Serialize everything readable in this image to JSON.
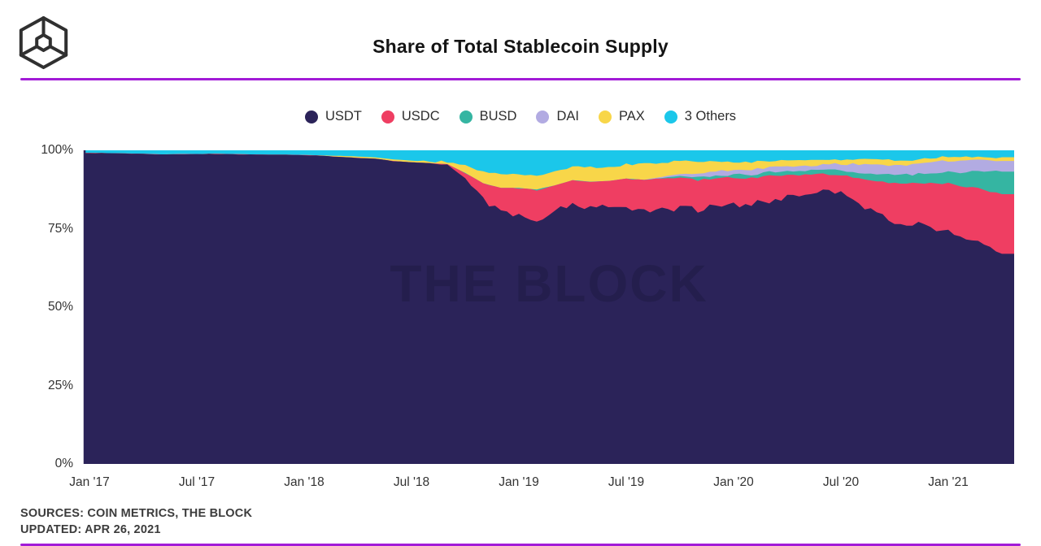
{
  "header": {
    "title": "Share of Total Stablecoin Supply",
    "accent_color": "#A21BD7",
    "logo": "the-block-cube-logo"
  },
  "chart_data": {
    "type": "area",
    "stacked": true,
    "units": "percent",
    "title": "Share of Total Stablecoin Supply",
    "watermark": "THE BLOCK",
    "legend_position": "top",
    "grid": false,
    "ylim": [
      0,
      100
    ],
    "y_tick_labels": [
      "0%",
      "25%",
      "50%",
      "75%",
      "100%"
    ],
    "x_tick_labels": [
      "Jan '17",
      "Jul '17",
      "Jan '18",
      "Jul '18",
      "Jan '19",
      "Jul '19",
      "Jan '20",
      "Jul '20",
      "Jan '21"
    ],
    "x_start": "2017-01",
    "x_end": "2021-04",
    "x_frequency": "monthly",
    "series": [
      {
        "name": "USDT",
        "color": "#2B2359",
        "values": [
          99.2,
          99.1,
          99.0,
          98.9,
          98.7,
          98.8,
          98.8,
          98.9,
          98.8,
          98.7,
          98.6,
          98.6,
          98.5,
          98.3,
          97.9,
          97.6,
          97.3,
          96.6,
          96.2,
          95.9,
          95.4,
          91.0,
          84.0,
          80.5,
          79.0,
          78.0,
          81.0,
          82.5,
          81.5,
          82.0,
          81.5,
          80.5,
          81.0,
          81.5,
          81.0,
          82.0,
          82.5,
          83.0,
          84.0,
          85.0,
          86.0,
          86.5,
          86.0,
          83.0,
          80.0,
          77.5,
          76.5,
          75.5,
          74.5,
          72.0,
          69.5,
          67.0
        ]
      },
      {
        "name": "USDC",
        "color": "#EF3E62",
        "values": [
          0,
          0,
          0,
          0,
          0,
          0,
          0,
          0,
          0,
          0,
          0,
          0,
          0,
          0,
          0,
          0,
          0,
          0,
          0,
          0,
          0.2,
          1.8,
          5.5,
          7.5,
          9.0,
          9.5,
          7.8,
          8.0,
          8.5,
          8.2,
          9.5,
          10.0,
          10.0,
          9.8,
          9.5,
          9.2,
          8.8,
          8.2,
          8.0,
          7.0,
          6.2,
          6.0,
          6.2,
          8.0,
          10.0,
          12.0,
          13.0,
          14.0,
          15.0,
          16.5,
          18.0,
          19.0
        ]
      },
      {
        "name": "BUSD",
        "color": "#35B5A2",
        "values": [
          0,
          0,
          0,
          0,
          0,
          0,
          0,
          0,
          0,
          0,
          0,
          0,
          0,
          0,
          0,
          0,
          0,
          0,
          0,
          0,
          0,
          0,
          0,
          0,
          0,
          0,
          0,
          0,
          0,
          0,
          0,
          0.1,
          0.2,
          0.5,
          0.8,
          0.8,
          0.9,
          1.0,
          1.2,
          1.3,
          1.3,
          1.3,
          1.4,
          1.8,
          2.2,
          2.6,
          2.8,
          3.2,
          3.6,
          4.5,
          5.8,
          7.2
        ]
      },
      {
        "name": "DAI",
        "color": "#B2ABE2",
        "values": [
          0,
          0,
          0,
          0,
          0,
          0,
          0,
          0,
          0,
          0,
          0,
          0,
          0,
          0,
          0,
          0,
          0,
          0,
          0,
          0,
          0,
          0,
          0,
          0,
          0,
          0,
          0,
          0,
          0,
          0,
          0,
          0,
          0.3,
          0.8,
          1.4,
          1.5,
          1.4,
          1.6,
          1.3,
          1.4,
          1.5,
          1.7,
          2.0,
          2.8,
          3.2,
          3.0,
          3.2,
          3.4,
          3.6,
          3.6,
          3.5,
          3.4
        ]
      },
      {
        "name": "PAX",
        "color": "#F8D649",
        "values": [
          0,
          0,
          0,
          0,
          0,
          0,
          0,
          0,
          0,
          0,
          0,
          0,
          0,
          0.1,
          0.3,
          0.4,
          0.4,
          0.5,
          0.5,
          0.6,
          0.8,
          2.2,
          3.8,
          4.3,
          4.3,
          4.6,
          4.4,
          4.2,
          4.5,
          4.2,
          4.5,
          5.0,
          4.5,
          4.0,
          3.5,
          3.0,
          2.6,
          2.4,
          2.2,
          2.0,
          1.8,
          1.6,
          1.5,
          1.5,
          1.6,
          1.7,
          1.5,
          1.4,
          1.3,
          1.2,
          1.1,
          1.2
        ]
      },
      {
        "name": "3 Others",
        "color": "#1BC7EA",
        "values": [
          0.8,
          0.9,
          1.0,
          1.1,
          1.3,
          1.2,
          1.2,
          1.1,
          1.2,
          1.3,
          1.4,
          1.4,
          1.5,
          1.6,
          1.8,
          2.0,
          2.3,
          2.9,
          3.3,
          3.5,
          3.6,
          5.0,
          6.7,
          7.7,
          7.7,
          7.9,
          6.8,
          5.3,
          5.5,
          5.6,
          4.5,
          4.4,
          4.0,
          3.4,
          3.8,
          3.5,
          3.8,
          3.8,
          3.3,
          3.3,
          3.2,
          2.9,
          2.9,
          2.9,
          3.0,
          3.2,
          3.0,
          2.5,
          2.0,
          2.2,
          2.1,
          2.2
        ]
      }
    ]
  },
  "footer": {
    "sources": "SOURCES: COIN METRICS, THE BLOCK",
    "updated": "UPDATED: APR 26, 2021"
  }
}
